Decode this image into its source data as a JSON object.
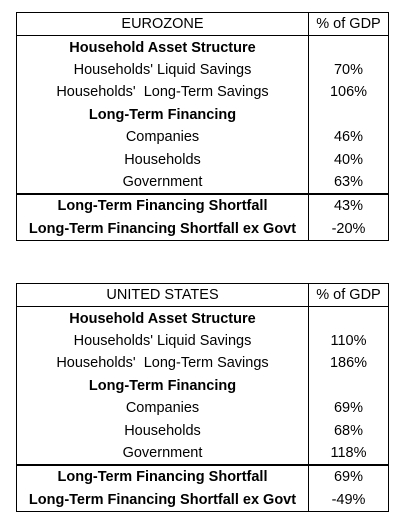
{
  "tables": [
    {
      "header": {
        "region": "EUROZONE",
        "unit": "% of GDP"
      },
      "rows": [
        {
          "label": "Household Asset Structure",
          "value": ""
        },
        {
          "label": "Households' Liquid Savings",
          "value": "70%"
        },
        {
          "label": "Households'  Long-Term Savings",
          "value": "106%"
        },
        {
          "label": "Long-Term Financing",
          "value": ""
        },
        {
          "label": "Companies",
          "value": "46%"
        },
        {
          "label": "Households",
          "value": "40%"
        },
        {
          "label": "Government",
          "value": "63%"
        },
        {
          "label": "Long-Term Financing Shortfall",
          "value": "43%"
        },
        {
          "label": "Long-Term Financing Shortfall ex Govt",
          "value": "-20%"
        }
      ]
    },
    {
      "header": {
        "region": "UNITED STATES",
        "unit": "% of GDP"
      },
      "rows": [
        {
          "label": "Household Asset Structure",
          "value": ""
        },
        {
          "label": "Households' Liquid Savings",
          "value": "110%"
        },
        {
          "label": "Households'  Long-Term Savings",
          "value": "186%"
        },
        {
          "label": "Long-Term Financing",
          "value": ""
        },
        {
          "label": "Companies",
          "value": "69%"
        },
        {
          "label": "Households",
          "value": "68%"
        },
        {
          "label": "Government",
          "value": "118%"
        },
        {
          "label": "Long-Term Financing Shortfall",
          "value": "69%"
        },
        {
          "label": "Long-Term Financing Shortfall ex Govt",
          "value": "-49%"
        }
      ]
    }
  ]
}
